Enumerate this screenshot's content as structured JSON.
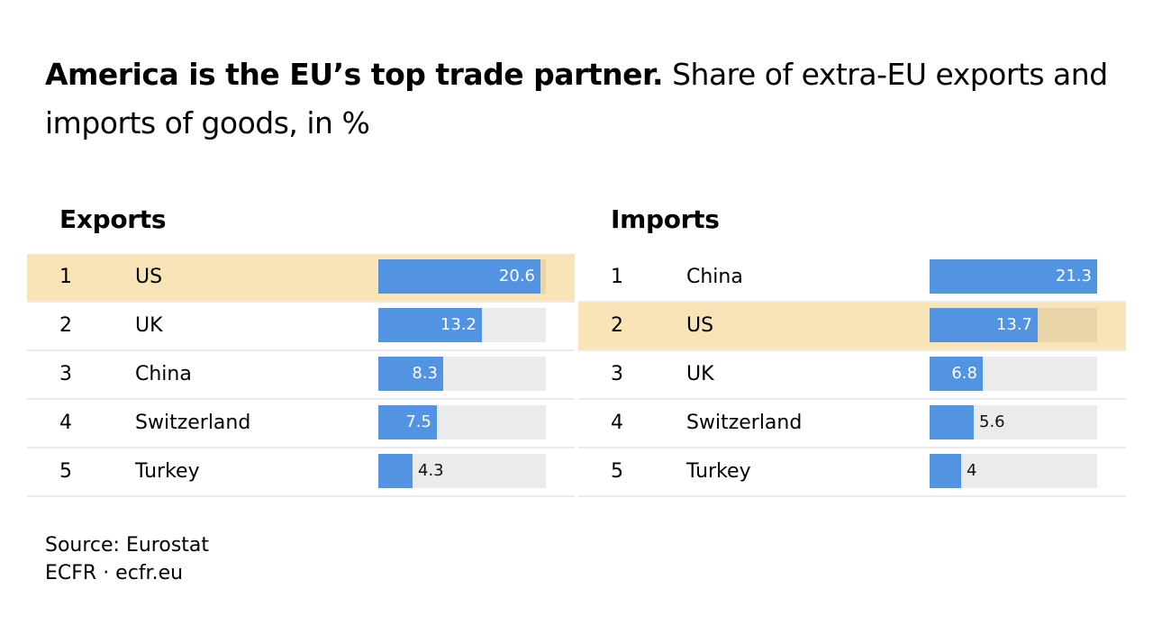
{
  "header": {
    "title_bold": "America is the EU’s top trade partner.",
    "title_rest": " Share of extra-EU exports and imports of goods, in %"
  },
  "colors": {
    "bar": "#5294e2",
    "track": "#ebebeb",
    "highlight": "#f9e4b7",
    "highlight_track": "#ead5ab"
  },
  "exports": {
    "heading": "Exports",
    "rows": [
      {
        "rank": "1",
        "country": "US",
        "value": "20.6",
        "highlight": true
      },
      {
        "rank": "2",
        "country": "UK",
        "value": "13.2"
      },
      {
        "rank": "3",
        "country": "China",
        "value": "8.3"
      },
      {
        "rank": "4",
        "country": "Switzerland",
        "value": "7.5"
      },
      {
        "rank": "5",
        "country": "Turkey",
        "value": "4.3"
      }
    ]
  },
  "imports": {
    "heading": "Imports",
    "rows": [
      {
        "rank": "1",
        "country": "China",
        "value": "21.3"
      },
      {
        "rank": "2",
        "country": "US",
        "value": "13.7",
        "highlight": true
      },
      {
        "rank": "3",
        "country": "UK",
        "value": "6.8"
      },
      {
        "rank": "4",
        "country": "Switzerland",
        "value": "5.6"
      },
      {
        "rank": "5",
        "country": "Turkey",
        "value": "4"
      }
    ]
  },
  "footer": {
    "source": "Source: Eurostat",
    "credit": "ECFR · ecfr.eu"
  },
  "chart_data": [
    {
      "type": "bar",
      "title": "Exports",
      "categories": [
        "US",
        "UK",
        "China",
        "Switzerland",
        "Turkey"
      ],
      "values": [
        20.6,
        13.2,
        8.3,
        7.5,
        4.3
      ],
      "xlabel": "",
      "ylabel": "Share of extra-EU exports of goods, %",
      "ylim": [
        0,
        21.3
      ],
      "orientation": "horizontal",
      "highlight": "US"
    },
    {
      "type": "bar",
      "title": "Imports",
      "categories": [
        "China",
        "US",
        "UK",
        "Switzerland",
        "Turkey"
      ],
      "values": [
        21.3,
        13.7,
        6.8,
        5.6,
        4
      ],
      "xlabel": "",
      "ylabel": "Share of extra-EU imports of goods, %",
      "ylim": [
        0,
        21.3
      ],
      "orientation": "horizontal",
      "highlight": "US"
    }
  ]
}
